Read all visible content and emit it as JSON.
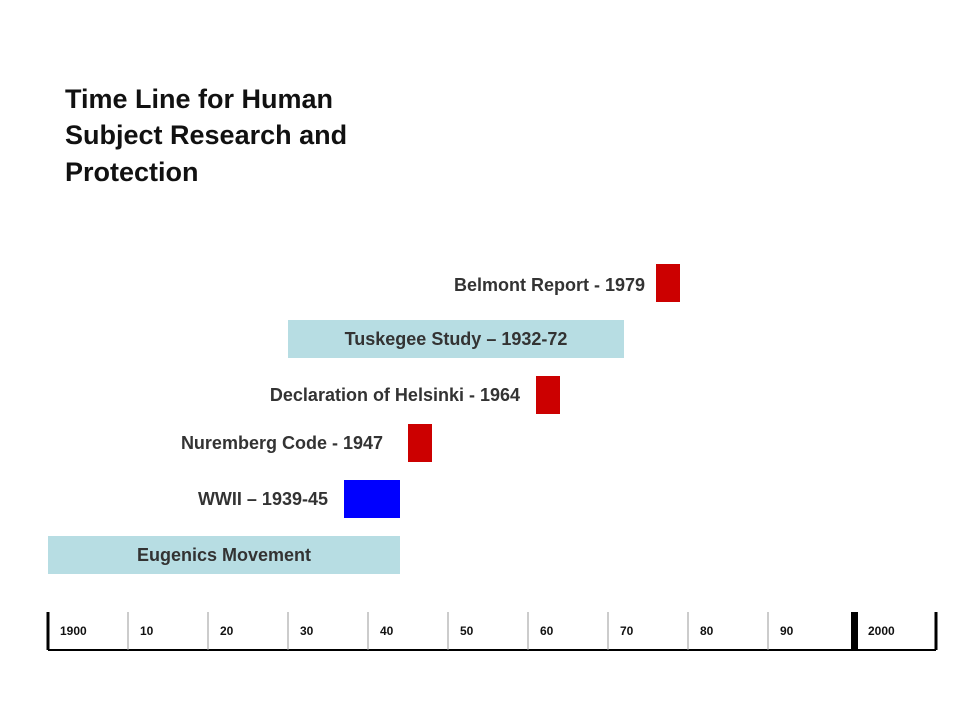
{
  "title": [
    "Time Line for Human",
    "Subject Research and",
    "Protection"
  ],
  "events": [
    {
      "label": "Belmont Report - 1979"
    },
    {
      "label": "Tuskegee Study – 1932-72"
    },
    {
      "label": "Declaration of Helsinki - 1964"
    },
    {
      "label": "Nuremberg Code - 1947"
    },
    {
      "label": "WWII – 1939-45"
    },
    {
      "label": "Eugenics Movement"
    }
  ],
  "axis": {
    "labels": [
      "1900",
      "10",
      "20",
      "30",
      "40",
      "50",
      "60",
      "70",
      "80",
      "90",
      "2000"
    ]
  }
}
